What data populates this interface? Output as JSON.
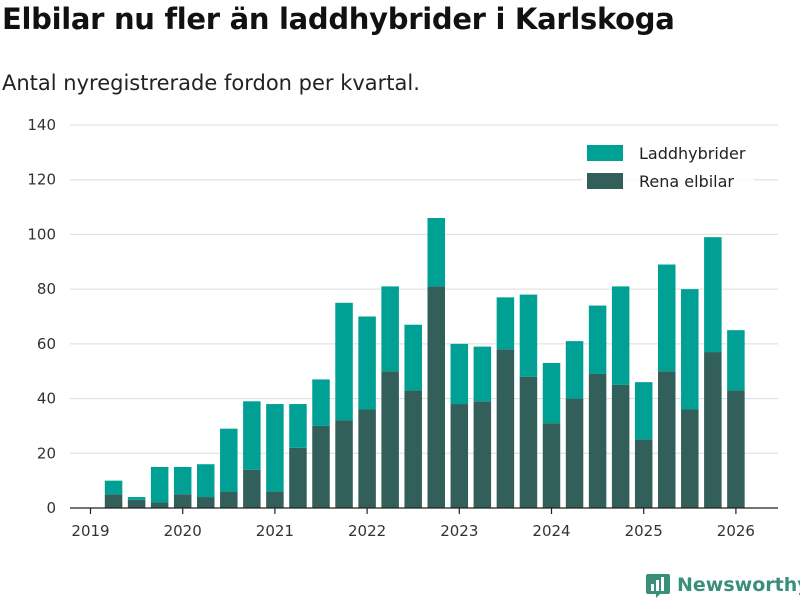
{
  "chart_data": {
    "type": "bar",
    "stacked": true,
    "title": "Elbilar nu fler än laddhybrider i Karlskoga",
    "subtitle": "Antal nyregistrerade fordon per kvartal.",
    "xlabel": "",
    "ylabel": "",
    "ylim": [
      0,
      140
    ],
    "yticks": [
      0,
      20,
      40,
      60,
      80,
      100,
      120,
      140
    ],
    "xticks": [
      "2019",
      "2020",
      "2021",
      "2022",
      "2023",
      "2024",
      "2025",
      "2026"
    ],
    "categories": [
      "2019Q2",
      "2019Q3",
      "2019Q4",
      "2020Q1",
      "2020Q2",
      "2020Q3",
      "2020Q4",
      "2021Q1",
      "2021Q2",
      "2021Q3",
      "2021Q4",
      "2022Q1",
      "2022Q2",
      "2022Q3",
      "2022Q4",
      "2023Q1",
      "2023Q2",
      "2023Q3",
      "2023Q4",
      "2024Q1",
      "2024Q2",
      "2024Q3",
      "2024Q4",
      "2025Q1",
      "2025Q2",
      "2025Q3",
      "2025Q4",
      "2026Q1"
    ],
    "series": [
      {
        "name": "Rena elbilar",
        "color": "#335f5a",
        "values": [
          5,
          3,
          2,
          5,
          4,
          6,
          14,
          6,
          22,
          30,
          32,
          36,
          50,
          43,
          81,
          38,
          39,
          58,
          48,
          31,
          40,
          49,
          45,
          25,
          50,
          36,
          57,
          43
        ]
      },
      {
        "name": "Laddhybrider",
        "color": "#00a095",
        "values": [
          5,
          1,
          13,
          10,
          12,
          23,
          25,
          32,
          16,
          17,
          43,
          34,
          31,
          24,
          25,
          22,
          20,
          19,
          30,
          22,
          21,
          25,
          36,
          21,
          39,
          44,
          42,
          22
        ]
      }
    ],
    "legend": [
      {
        "name": "Laddhybrider",
        "color": "#00a095"
      },
      {
        "name": "Rena elbilar",
        "color": "#335f5a"
      }
    ],
    "legend_position": "top-right",
    "grid": true
  },
  "brand": {
    "name": "Newsworthy"
  }
}
